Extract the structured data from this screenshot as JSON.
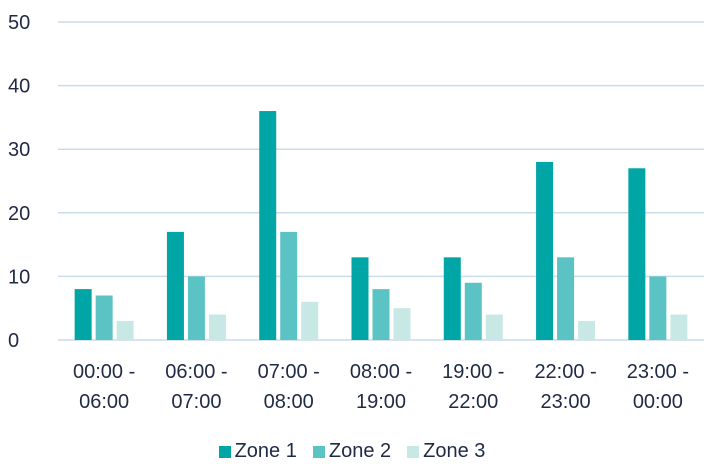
{
  "chart_data": {
    "type": "bar",
    "categories": [
      [
        "00:00 -",
        "06:00"
      ],
      [
        "06:00 -",
        "07:00"
      ],
      [
        "07:00 -",
        "08:00"
      ],
      [
        "08:00 -",
        "19:00"
      ],
      [
        "19:00 -",
        "22:00"
      ],
      [
        "22:00 -",
        "23:00"
      ],
      [
        "23:00 -",
        "00:00"
      ]
    ],
    "series": [
      {
        "name": "Zone 1",
        "color": "#00a5a5",
        "values": [
          8,
          17,
          36,
          13,
          13,
          28,
          27
        ]
      },
      {
        "name": "Zone 2",
        "color": "#5cc3c4",
        "values": [
          7,
          10,
          17,
          8,
          9,
          13,
          10
        ]
      },
      {
        "name": "Zone 3",
        "color": "#c8e8e6",
        "values": [
          3,
          4,
          6,
          5,
          4,
          3,
          4
        ]
      }
    ],
    "yticks": [
      "0",
      "10",
      "20",
      "30",
      "40",
      "50"
    ],
    "ylim": [
      0,
      50
    ],
    "grid": true,
    "legend_position": "bottom"
  }
}
